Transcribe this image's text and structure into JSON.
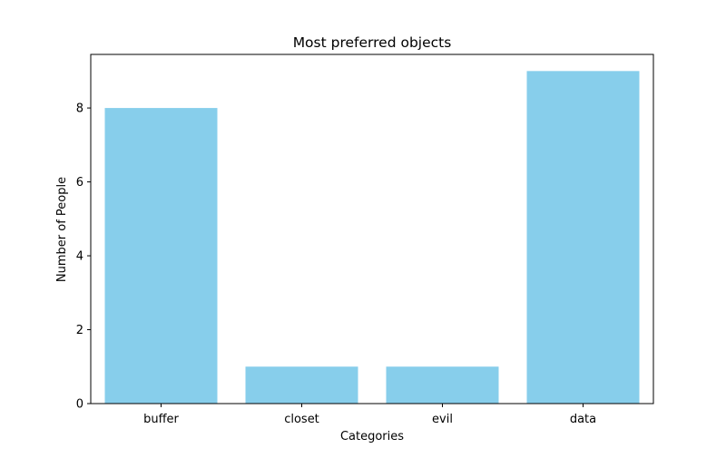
{
  "colors": {
    "bar": "#87ceeb",
    "axis": "#000000",
    "background": "#ffffff"
  },
  "chart_data": {
    "type": "bar",
    "title": "Most preferred objects",
    "xlabel": "Categories",
    "ylabel": "Number of People",
    "categories": [
      "buffer",
      "closet",
      "evil",
      "data"
    ],
    "values": [
      8,
      1,
      1,
      9
    ],
    "ylim": [
      0,
      9.45
    ],
    "yticks": [
      0,
      2,
      4,
      6,
      8
    ],
    "grid": false,
    "legend": "none"
  }
}
